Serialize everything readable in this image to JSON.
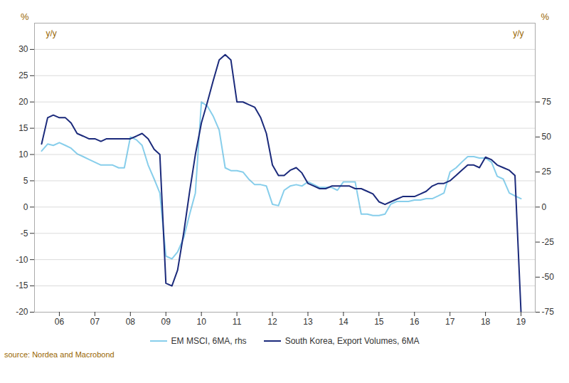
{
  "chart_data": {
    "type": "line",
    "x": [
      2005.5,
      2005.67,
      2005.83,
      2006.0,
      2006.17,
      2006.33,
      2006.5,
      2006.67,
      2006.83,
      2007.0,
      2007.17,
      2007.33,
      2007.5,
      2007.67,
      2007.83,
      2008.0,
      2008.17,
      2008.33,
      2008.5,
      2008.67,
      2008.83,
      2009.0,
      2009.17,
      2009.33,
      2009.5,
      2009.67,
      2009.83,
      2010.0,
      2010.17,
      2010.33,
      2010.5,
      2010.67,
      2010.83,
      2011.0,
      2011.17,
      2011.33,
      2011.5,
      2011.67,
      2011.83,
      2012.0,
      2012.17,
      2012.33,
      2012.5,
      2012.67,
      2012.83,
      2013.0,
      2013.17,
      2013.33,
      2013.5,
      2013.67,
      2013.83,
      2014.0,
      2014.17,
      2014.33,
      2014.5,
      2014.67,
      2014.83,
      2015.0,
      2015.17,
      2015.33,
      2015.5,
      2015.67,
      2015.83,
      2016.0,
      2016.17,
      2016.33,
      2016.5,
      2016.67,
      2016.83,
      2017.0,
      2017.17,
      2017.33,
      2017.5,
      2017.67,
      2017.83,
      2018.0,
      2018.17,
      2018.33,
      2018.5,
      2018.67,
      2018.83,
      2019.0
    ],
    "series": [
      {
        "name": "EM MSCI, 6MA, rhs",
        "color": "#87CEEB",
        "axis": "y2",
        "values": [
          40,
          45,
          44,
          46,
          44,
          42,
          38,
          36,
          34,
          32,
          30,
          30,
          30,
          28,
          28,
          50,
          48,
          44,
          30,
          20,
          10,
          -35,
          -37,
          -32,
          -22,
          -5,
          10,
          75,
          72,
          65,
          55,
          28,
          26,
          26,
          25,
          20,
          16,
          16,
          15,
          2,
          1,
          12,
          15,
          16,
          15,
          18,
          16,
          14,
          14,
          14,
          12,
          18,
          18,
          18,
          -5,
          -5,
          -6,
          -6,
          -5,
          2,
          4,
          4,
          4,
          5,
          5,
          6,
          6,
          8,
          10,
          25,
          28,
          32,
          36,
          36,
          35,
          35,
          32,
          22,
          20,
          10,
          8,
          6
        ]
      },
      {
        "name": "South Korea, Export Volumes, 6MA",
        "color": "#1B2A7B",
        "values": [
          12,
          17,
          17.5,
          17,
          17,
          16,
          14,
          13.5,
          13,
          13,
          12.5,
          13,
          13,
          13,
          13,
          13,
          13.5,
          14,
          13,
          11,
          10,
          -14.5,
          -15,
          -12,
          -5,
          3,
          10,
          16,
          20,
          24,
          28,
          29,
          28,
          20,
          20,
          19.5,
          19,
          17,
          14,
          8,
          6,
          6,
          7,
          7.5,
          6.5,
          4.5,
          4,
          3.5,
          3.5,
          4,
          4,
          4,
          4,
          3.5,
          3.5,
          3,
          2.5,
          1,
          0.5,
          1,
          1.5,
          2,
          2,
          2,
          2.5,
          3,
          4,
          4.5,
          4.5,
          5,
          6,
          7,
          8,
          8,
          7.5,
          9.5,
          9,
          8,
          7.5,
          7,
          6,
          -20
        ]
      }
    ],
    "xlim": [
      2005.3,
      2019.4
    ],
    "xticks": [
      {
        "value": 2006,
        "label": "06"
      },
      {
        "value": 2007,
        "label": "07"
      },
      {
        "value": 2008,
        "label": "08"
      },
      {
        "value": 2009,
        "label": "09"
      },
      {
        "value": 2010,
        "label": "10"
      },
      {
        "value": 2011,
        "label": "11"
      },
      {
        "value": 2012,
        "label": "12"
      },
      {
        "value": 2013,
        "label": "13"
      },
      {
        "value": 2014,
        "label": "14"
      },
      {
        "value": 2015,
        "label": "15"
      },
      {
        "value": 2016,
        "label": "16"
      },
      {
        "value": 2017,
        "label": "17"
      },
      {
        "value": 2018,
        "label": "18"
      },
      {
        "value": 2019,
        "label": "19"
      }
    ],
    "ylim": [
      -20,
      35
    ],
    "yticks": [
      -20,
      -15,
      -10,
      -5,
      0,
      5,
      10,
      15,
      20,
      25,
      30
    ],
    "y2lim": [
      -75,
      131.25
    ],
    "y2ticks": [
      -75,
      -50,
      -25,
      0,
      25,
      50,
      75
    ],
    "ylabel": "%",
    "y2label": "%",
    "annotations": [
      {
        "text": "y/y",
        "axis": "y"
      },
      {
        "text": "y/y",
        "axis": "y2"
      }
    ],
    "caption": "source: Nordea and Macrobond",
    "grid": true,
    "legend": "bottom"
  }
}
